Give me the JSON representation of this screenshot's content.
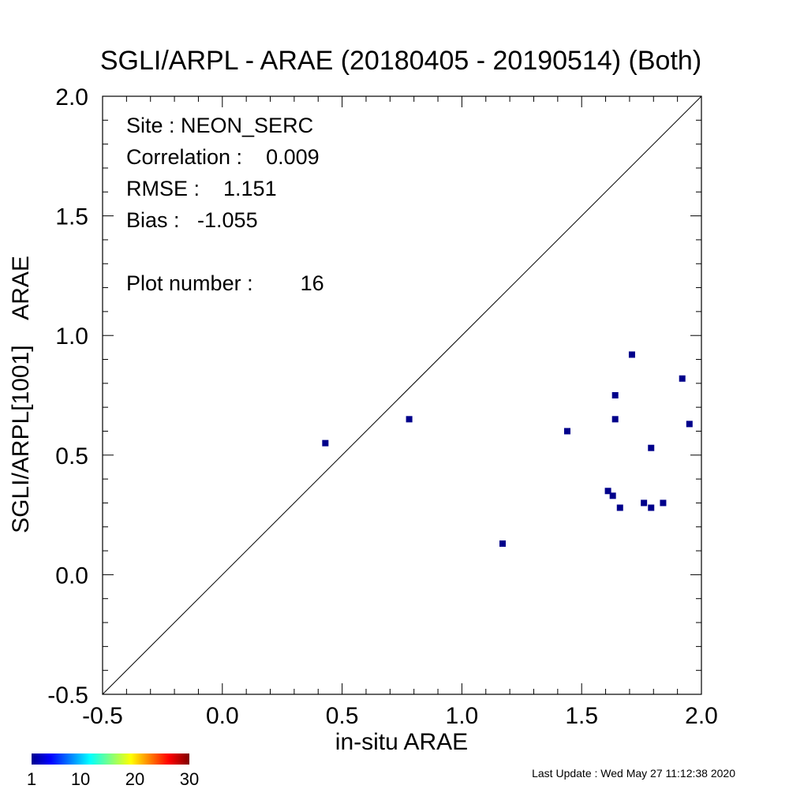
{
  "chart_data": {
    "type": "scatter",
    "title": "SGLI/ARPL - ARAE (20180405 - 20190514) (Both)",
    "xlabel": "in-situ ARAE",
    "ylabel": "SGLI/ARPL[1001]    ARAE",
    "xlim": [
      -0.5,
      2.0
    ],
    "ylim": [
      -0.5,
      2.0
    ],
    "x_ticks": [
      "-0.5",
      "0.0",
      "0.5",
      "1.0",
      "1.5",
      "2.0"
    ],
    "y_ticks": [
      "-0.5",
      "0.0",
      "0.5",
      "1.0",
      "1.5",
      "2.0"
    ],
    "one_to_one_line": true,
    "grid": false,
    "marker_color": "#00008b",
    "stats": {
      "site": "Site : NEON_SERC",
      "correlation": "Correlation :    0.009",
      "rmse": "RMSE :    1.151",
      "bias": "Bias :   -1.055",
      "plot_number": "Plot number :        16"
    },
    "points": [
      {
        "x": 0.43,
        "y": 0.55
      },
      {
        "x": 0.78,
        "y": 0.65
      },
      {
        "x": 1.17,
        "y": 0.13
      },
      {
        "x": 1.44,
        "y": 0.6
      },
      {
        "x": 1.61,
        "y": 0.35
      },
      {
        "x": 1.63,
        "y": 0.33
      },
      {
        "x": 1.64,
        "y": 0.65
      },
      {
        "x": 1.64,
        "y": 0.75
      },
      {
        "x": 1.66,
        "y": 0.28
      },
      {
        "x": 1.71,
        "y": 0.92
      },
      {
        "x": 1.76,
        "y": 0.3
      },
      {
        "x": 1.79,
        "y": 0.28
      },
      {
        "x": 1.79,
        "y": 0.53
      },
      {
        "x": 1.84,
        "y": 0.3
      },
      {
        "x": 1.92,
        "y": 0.82
      },
      {
        "x": 1.95,
        "y": 0.63
      }
    ],
    "colorbar": {
      "tick_labels": [
        "1",
        "10",
        "20",
        "30"
      ],
      "range": [
        1,
        30
      ]
    },
    "footer": "Last Update : Wed May 27 11:12:38 2020"
  }
}
